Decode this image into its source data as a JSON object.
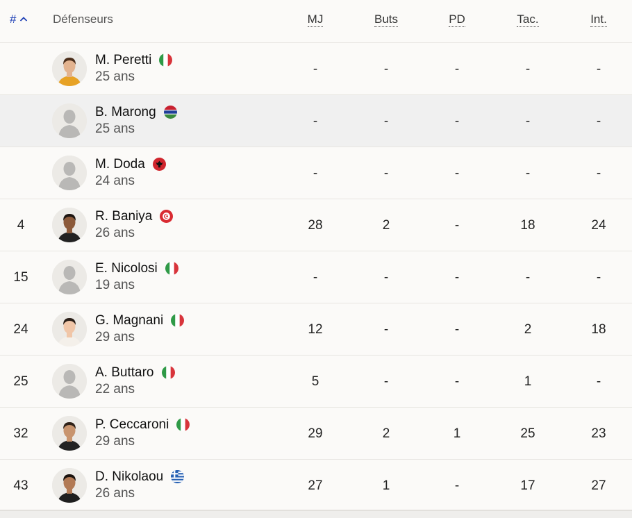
{
  "header": {
    "sort_label": "#",
    "group_label": "Défenseurs",
    "columns": [
      "MJ",
      "Buts",
      "PD",
      "Tac.",
      "Int."
    ]
  },
  "rows": [
    {
      "number": "",
      "name": "M. Peretti",
      "age": "25 ans",
      "flag": "italy-flag-icon",
      "avatar": "photo",
      "stats": [
        "-",
        "-",
        "-",
        "-",
        "-"
      ]
    },
    {
      "number": "",
      "name": "B. Marong",
      "age": "25 ans",
      "flag": "gambia-flag-icon",
      "avatar": "placeholder",
      "stats": [
        "-",
        "-",
        "-",
        "-",
        "-"
      ],
      "highlighted": true
    },
    {
      "number": "",
      "name": "M. Doda",
      "age": "24 ans",
      "flag": "albania-flag-icon",
      "avatar": "placeholder",
      "stats": [
        "-",
        "-",
        "-",
        "-",
        "-"
      ]
    },
    {
      "number": "4",
      "name": "R. Baniya",
      "age": "26 ans",
      "flag": "tunisia-flag-icon",
      "avatar": "photo",
      "stats": [
        "28",
        "2",
        "-",
        "18",
        "24"
      ]
    },
    {
      "number": "15",
      "name": "E. Nicolosi",
      "age": "19 ans",
      "flag": "italy-flag-icon",
      "avatar": "placeholder",
      "stats": [
        "-",
        "-",
        "-",
        "-",
        "-"
      ]
    },
    {
      "number": "24",
      "name": "G. Magnani",
      "age": "29 ans",
      "flag": "italy-flag-icon",
      "avatar": "photo",
      "stats": [
        "12",
        "-",
        "-",
        "2",
        "18"
      ]
    },
    {
      "number": "25",
      "name": "A. Buttaro",
      "age": "22 ans",
      "flag": "italy-flag-icon",
      "avatar": "placeholder",
      "stats": [
        "5",
        "-",
        "-",
        "1",
        "-"
      ]
    },
    {
      "number": "32",
      "name": "P. Ceccaroni",
      "age": "29 ans",
      "flag": "italy-flag-icon",
      "avatar": "photo",
      "stats": [
        "29",
        "2",
        "1",
        "25",
        "23"
      ]
    },
    {
      "number": "43",
      "name": "D. Nikolaou",
      "age": "26 ans",
      "flag": "greece-flag-icon",
      "avatar": "photo",
      "stats": [
        "27",
        "1",
        "-",
        "17",
        "27"
      ]
    }
  ],
  "colors": {
    "accent": "#1d3fb5",
    "row_highlight": "#f0f0f0",
    "background": "#fbfaf8"
  }
}
